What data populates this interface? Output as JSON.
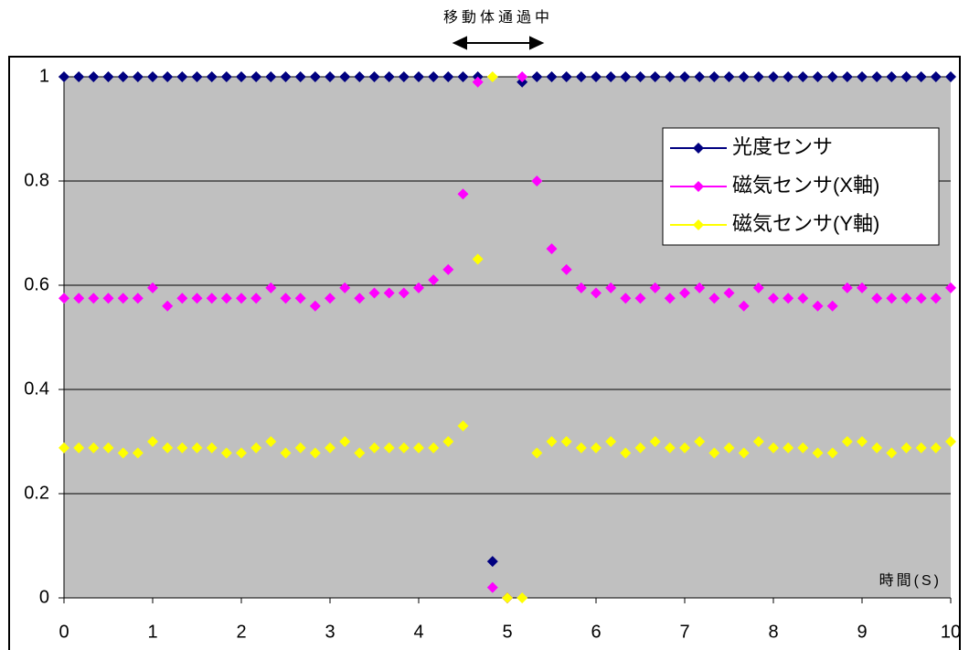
{
  "chart_data": {
    "type": "line",
    "annotation": "移動体通過中",
    "x_label": "時間(S)",
    "x": [
      0,
      0.167,
      0.333,
      0.5,
      0.667,
      0.833,
      1,
      1.167,
      1.333,
      1.5,
      1.667,
      1.833,
      2,
      2.167,
      2.333,
      2.5,
      2.667,
      2.833,
      3,
      3.167,
      3.333,
      3.5,
      3.667,
      3.833,
      4,
      4.167,
      4.333,
      4.5,
      4.667,
      4.833,
      5,
      5.167,
      5.333,
      5.5,
      5.667,
      5.833,
      6,
      6.167,
      6.333,
      6.5,
      6.667,
      6.833,
      7,
      7.167,
      7.333,
      7.5,
      7.667,
      7.833,
      8,
      8.167,
      8.333,
      8.5,
      8.667,
      8.833,
      9,
      9.167,
      9.333,
      9.5,
      9.667,
      9.833,
      10
    ],
    "series": [
      {
        "name": "光度センサ",
        "color": "#000080",
        "values": [
          1,
          1,
          1,
          1,
          1,
          1,
          1,
          1,
          1,
          1,
          1,
          1,
          1,
          1,
          1,
          1,
          1,
          1,
          1,
          1,
          1,
          1,
          1,
          1,
          1,
          1,
          1,
          1,
          1,
          0.07,
          0,
          0.99,
          1,
          1,
          1,
          1,
          1,
          1,
          1,
          1,
          1,
          1,
          1,
          1,
          1,
          1,
          1,
          1,
          1,
          1,
          1,
          1,
          1,
          1,
          1,
          1,
          1,
          1,
          1,
          1,
          1
        ]
      },
      {
        "name": "磁気センサ(X軸)",
        "color": "#ff00ff",
        "values": [
          0.575,
          0.575,
          0.575,
          0.575,
          0.575,
          0.575,
          0.595,
          0.56,
          0.575,
          0.575,
          0.575,
          0.575,
          0.575,
          0.575,
          0.595,
          0.575,
          0.575,
          0.56,
          0.575,
          0.595,
          0.575,
          0.585,
          0.585,
          0.585,
          0.595,
          0.61,
          0.63,
          0.775,
          0.99,
          0.02,
          0,
          1,
          0.8,
          0.67,
          0.63,
          0.595,
          0.585,
          0.595,
          0.575,
          0.575,
          0.595,
          0.575,
          0.585,
          0.595,
          0.575,
          0.585,
          0.56,
          0.595,
          0.575,
          0.575,
          0.575,
          0.56,
          0.56,
          0.595,
          0.595,
          0.575,
          0.575,
          0.575,
          0.575,
          0.575,
          0.595
        ]
      },
      {
        "name": "磁気センサ(Y軸)",
        "color": "#ffff00",
        "values": [
          0.288,
          0.288,
          0.288,
          0.288,
          0.278,
          0.278,
          0.3,
          0.288,
          0.288,
          0.288,
          0.288,
          0.278,
          0.278,
          0.288,
          0.3,
          0.278,
          0.288,
          0.278,
          0.288,
          0.3,
          0.278,
          0.288,
          0.288,
          0.288,
          0.288,
          0.288,
          0.3,
          0.33,
          0.65,
          1,
          0,
          0,
          0.278,
          0.3,
          0.3,
          0.288,
          0.288,
          0.3,
          0.278,
          0.288,
          0.3,
          0.288,
          0.288,
          0.3,
          0.278,
          0.288,
          0.278,
          0.3,
          0.288,
          0.288,
          0.288,
          0.278,
          0.278,
          0.3,
          0.3,
          0.288,
          0.278,
          0.288,
          0.288,
          0.288,
          0.3
        ]
      }
    ],
    "xlim": [
      0,
      10
    ],
    "xticks": [
      0,
      1,
      2,
      3,
      4,
      5,
      6,
      7,
      8,
      9,
      10
    ],
    "ylim": [
      0,
      1
    ],
    "yticks": [
      0,
      0.2,
      0.4,
      0.6,
      0.8,
      1
    ],
    "grid": true,
    "legend": "upper right"
  }
}
